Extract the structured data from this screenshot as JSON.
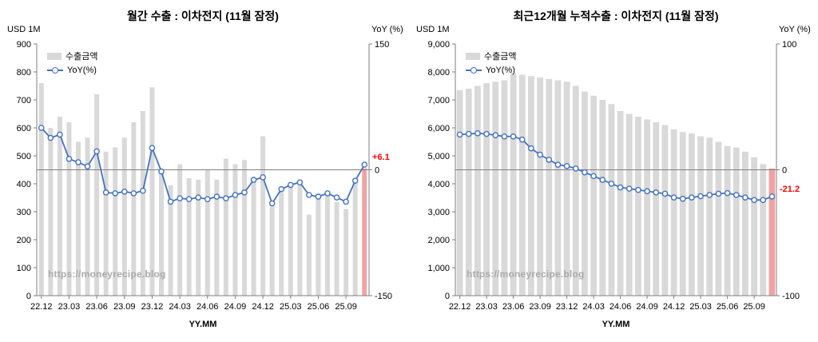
{
  "chart_data": [
    {
      "type": "bar",
      "title": "월간 수출 : 이차전지 (11월 잠정)",
      "xlabel": "YY.MM",
      "watermark": "https://moneyrecipe.blog",
      "legend_position": "top-left",
      "zero_line": true,
      "x": [
        "22.12",
        "23.01",
        "23.02",
        "23.03",
        "23.04",
        "23.05",
        "23.06",
        "23.07",
        "23.08",
        "23.09",
        "23.10",
        "23.11",
        "23.12",
        "24.01",
        "24.02",
        "24.03",
        "24.04",
        "24.05",
        "24.06",
        "24.07",
        "24.08",
        "24.09",
        "24.10",
        "24.11",
        "24.12",
        "25.01",
        "25.02",
        "25.03",
        "25.04",
        "25.05",
        "25.06",
        "25.07",
        "25.08",
        "25.09",
        "25.10",
        "25.11"
      ],
      "x_tick_labels": [
        "22.12",
        "23.03",
        "23.06",
        "23.09",
        "23.12",
        "24.03",
        "24.06",
        "24.09",
        "24.12",
        "25.03",
        "25.06",
        "25.09"
      ],
      "left_axis": {
        "label": "USD 1M",
        "min": 0,
        "max": 900,
        "step": 100,
        "comma": false
      },
      "right_axis": {
        "label": "YoY (%)",
        "min": -150,
        "max": 150,
        "ticks": [
          150,
          0,
          -150
        ]
      },
      "series": [
        {
          "name": "수출금액",
          "type": "bar",
          "axis": "left",
          "color": "#d9d9d9",
          "last_color": "#f0a3a3",
          "values": [
            760,
            600,
            640,
            620,
            550,
            565,
            720,
            515,
            530,
            565,
            620,
            660,
            745,
            440,
            395,
            470,
            420,
            415,
            450,
            415,
            490,
            470,
            485,
            420,
            570,
            325,
            370,
            390,
            405,
            290,
            365,
            360,
            335,
            310,
            420,
            455
          ]
        },
        {
          "name": "YoY(%)",
          "type": "line",
          "axis": "right",
          "color": "#4472c4",
          "values": [
            50,
            38,
            42,
            13,
            9,
            4,
            22,
            -27,
            -28,
            -26,
            -28,
            -25,
            26,
            -2,
            -38,
            -34,
            -35,
            -33,
            -35,
            -32,
            -34,
            -30,
            -27,
            -12,
            -9,
            -40,
            -23,
            -18,
            -15,
            -30,
            -32,
            -28,
            -33,
            -38,
            -13,
            6.1
          ]
        }
      ],
      "annotation": {
        "text": "+6.1",
        "color": "#ff0000"
      }
    },
    {
      "type": "bar",
      "title": "최근12개월 누적수출 : 이차전지 (11월 잠정)",
      "xlabel": "YY.MM",
      "watermark": "https://moneyrecipe.blog",
      "legend_position": "top-left",
      "zero_line": true,
      "x": [
        "22.12",
        "23.01",
        "23.02",
        "23.03",
        "23.04",
        "23.05",
        "23.06",
        "23.07",
        "23.08",
        "23.09",
        "23.10",
        "23.11",
        "23.12",
        "24.01",
        "24.02",
        "24.03",
        "24.04",
        "24.05",
        "24.06",
        "24.07",
        "24.08",
        "24.09",
        "24.10",
        "24.11",
        "24.12",
        "25.01",
        "25.02",
        "25.03",
        "25.04",
        "25.05",
        "25.06",
        "25.07",
        "25.08",
        "25.09",
        "25.10",
        "25.11"
      ],
      "x_tick_labels": [
        "22.12",
        "23.03",
        "23.06",
        "23.09",
        "23.12",
        "24.03",
        "24.06",
        "24.09",
        "24.12",
        "25.03",
        "25.06",
        "25.09"
      ],
      "left_axis": {
        "label": "USD 1M",
        "min": 0,
        "max": 9000,
        "step": 1000,
        "comma": true
      },
      "right_axis": {
        "label": "YoY (%)",
        "min": -100,
        "max": 100,
        "ticks": [
          100,
          0,
          -100
        ]
      },
      "series": [
        {
          "name": "수출금액",
          "type": "bar",
          "axis": "left",
          "color": "#d9d9d9",
          "last_color": "#f0a3a3",
          "values": [
            7350,
            7400,
            7500,
            7600,
            7650,
            7700,
            7950,
            7900,
            7850,
            7800,
            7750,
            7700,
            7650,
            7500,
            7300,
            7150,
            7000,
            6850,
            6600,
            6500,
            6400,
            6300,
            6200,
            6100,
            5950,
            5850,
            5800,
            5700,
            5650,
            5500,
            5350,
            5300,
            5150,
            4950,
            4700,
            4550
          ]
        },
        {
          "name": "YoY(%)",
          "type": "line",
          "axis": "right",
          "color": "#4472c4",
          "values": [
            28,
            28.5,
            29,
            28.5,
            27.5,
            26.5,
            26.5,
            24,
            17,
            12,
            8,
            4,
            3,
            1,
            -2,
            -5,
            -8,
            -11,
            -14,
            -15,
            -16,
            -17,
            -18,
            -19,
            -22,
            -23,
            -22,
            -21,
            -20,
            -19,
            -18.5,
            -20,
            -22,
            -24,
            -24,
            -21.2
          ]
        }
      ],
      "annotation": {
        "text": "-21.2",
        "color": "#ff0000"
      }
    }
  ]
}
